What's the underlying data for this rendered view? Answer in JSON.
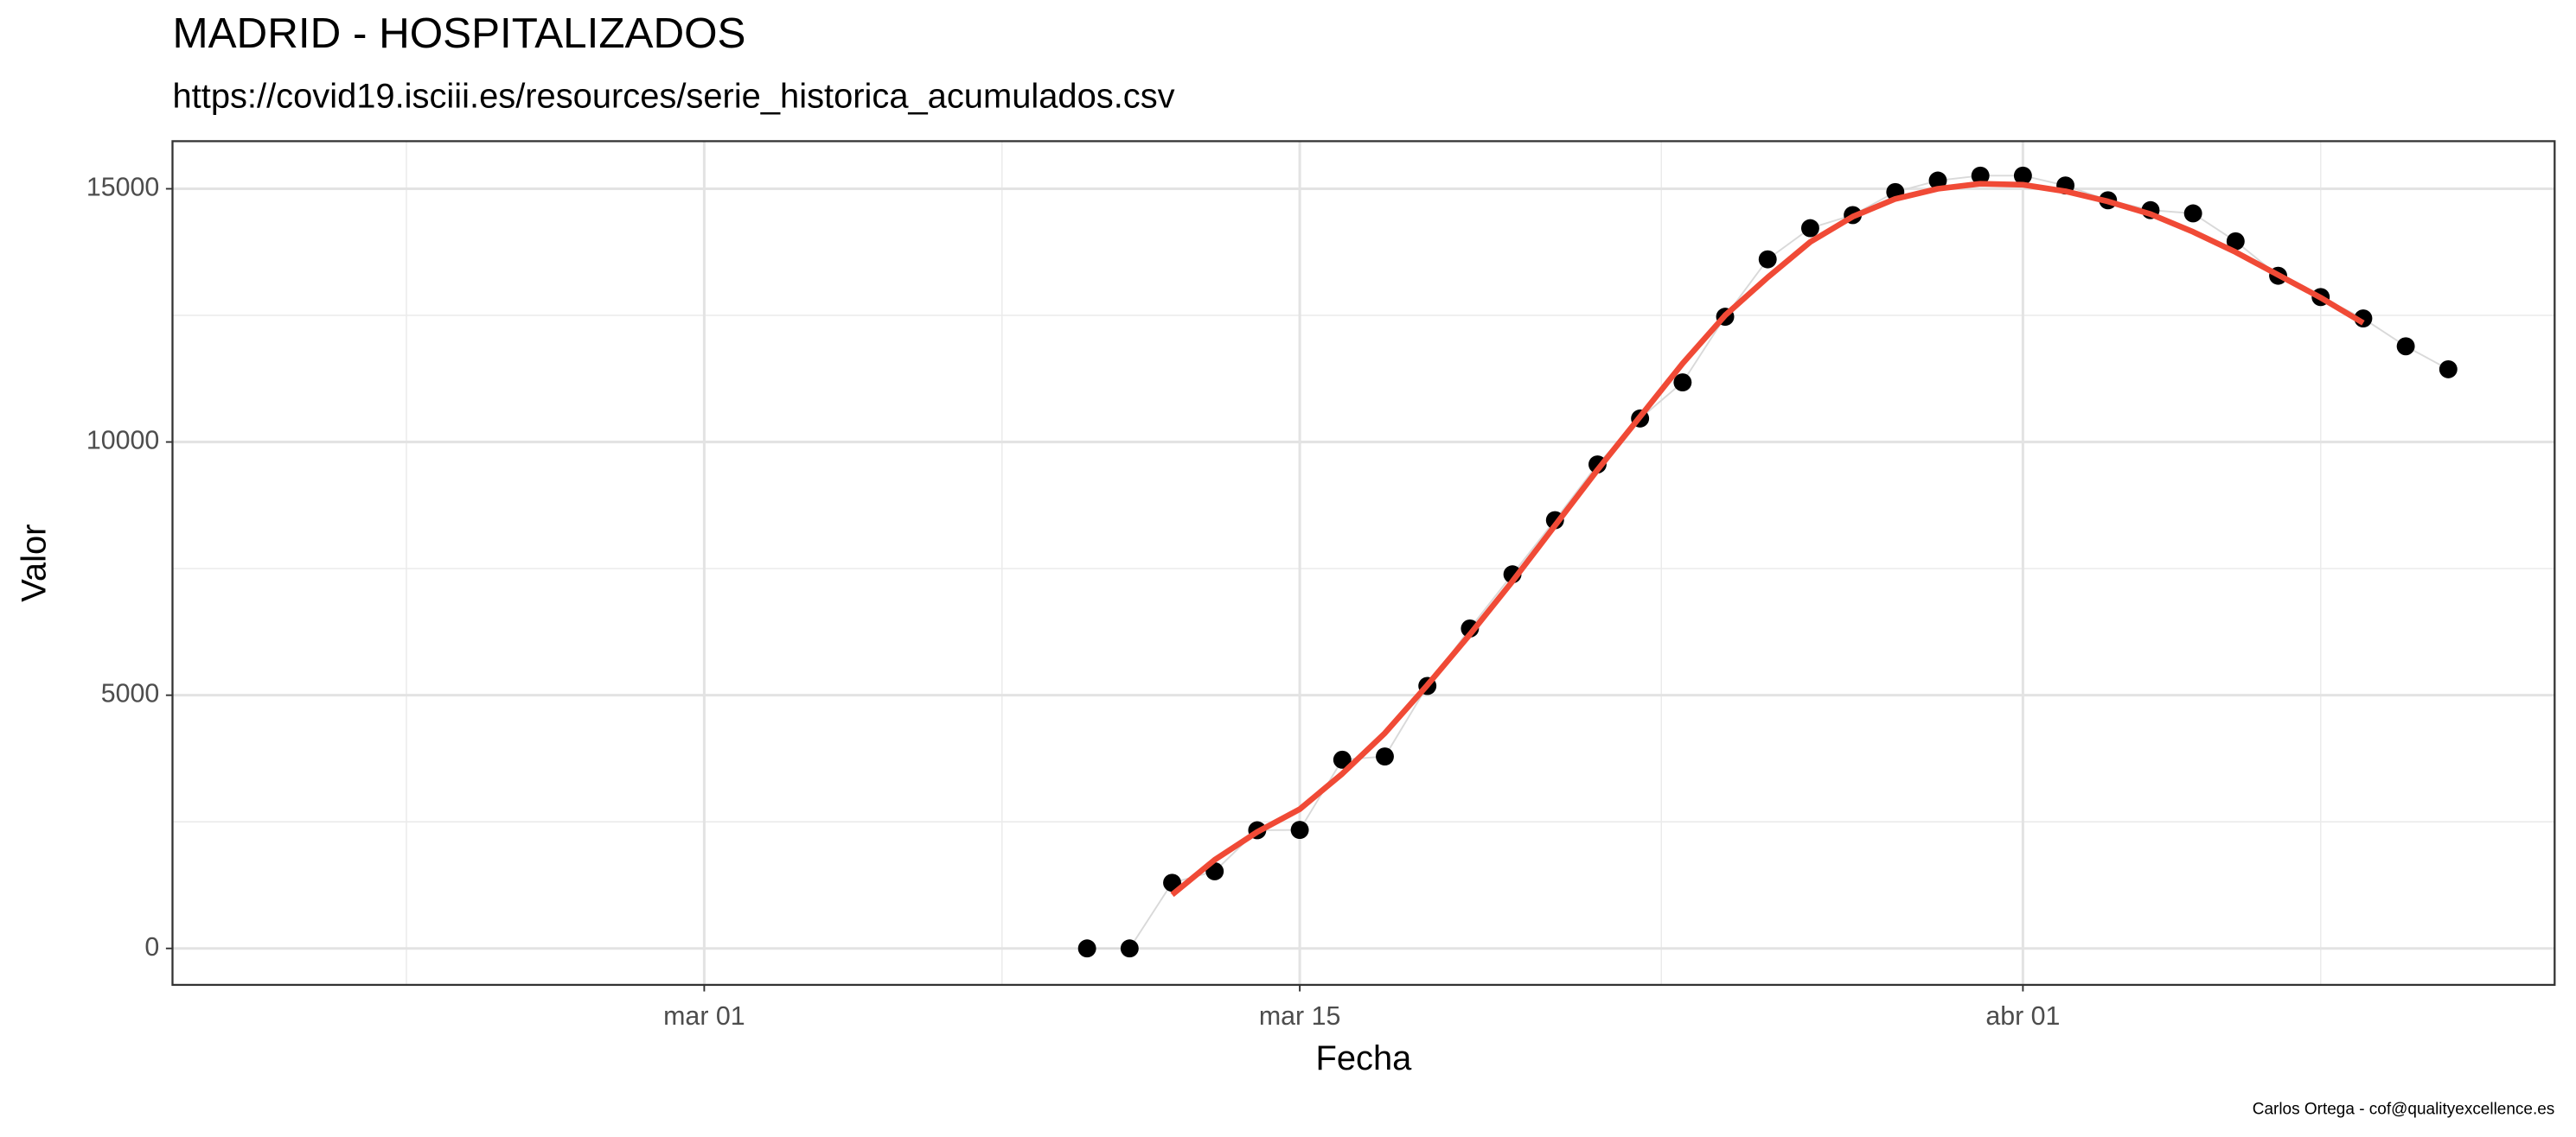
{
  "chart_data": {
    "type": "scatter",
    "title": "MADRID - HOSPITALIZADOS",
    "subtitle": "https://covid19.isciii.es/resources/serie_historica_acumulados.csv",
    "x_label": "Fecha",
    "y_label": "Valor",
    "caption": "Carlos Ortega - cof@qualityexcellence.es",
    "x": [
      "03-10",
      "03-11",
      "03-12",
      "03-13",
      "03-14",
      "03-15",
      "03-16",
      "03-17",
      "03-18",
      "03-19",
      "03-20",
      "03-21",
      "03-22",
      "03-23",
      "03-24",
      "03-25",
      "03-26",
      "03-27",
      "03-28",
      "03-29",
      "03-30",
      "03-31",
      "04-01",
      "04-02",
      "04-03",
      "04-04",
      "04-05",
      "04-06",
      "04-07",
      "04-08",
      "04-09",
      "04-10",
      "04-11"
    ],
    "series": [
      {
        "color": "#000000",
        "connector_color": "#d9d9d9",
        "style": "points",
        "values": [
          0,
          0,
          1296,
          1523,
          2333,
          2340,
          3726,
          3790,
          5183,
          6317,
          7387,
          8456,
          9557,
          10464,
          11177,
          12473,
          13607,
          14222,
          14481,
          14935,
          15162,
          15259,
          15259,
          15065,
          14773,
          14578,
          14514,
          13963,
          13283,
          12862,
          12440,
          11890,
          11436
        ]
      },
      {
        "color": "#f04a36",
        "style": "smooth",
        "values": [
          null,
          null,
          1060,
          1750,
          2300,
          2750,
          3450,
          4250,
          5200,
          6200,
          7250,
          8350,
          9450,
          10500,
          11550,
          12500,
          13250,
          13950,
          14450,
          14800,
          15000,
          15100,
          15080,
          14950,
          14750,
          14500,
          14150,
          13750,
          13300,
          12850,
          12350,
          null,
          null
        ]
      }
    ],
    "xlim": [
      "02-17T12",
      "04-13T12"
    ],
    "xticks": [
      {
        "value": "03-01",
        "label": "mar 01"
      },
      {
        "value": "03-15",
        "label": "mar 15"
      },
      {
        "value": "04-01",
        "label": "abr 01"
      }
    ],
    "x_minor_ticks": [
      "02-23",
      "03-08",
      "03-23T12",
      "04-08"
    ],
    "ylim": [
      -720,
      15940
    ],
    "yticks": [
      0,
      5000,
      10000,
      15000
    ],
    "y_minor_ticks": [
      2500,
      7500,
      12500
    ],
    "grid": true
  }
}
